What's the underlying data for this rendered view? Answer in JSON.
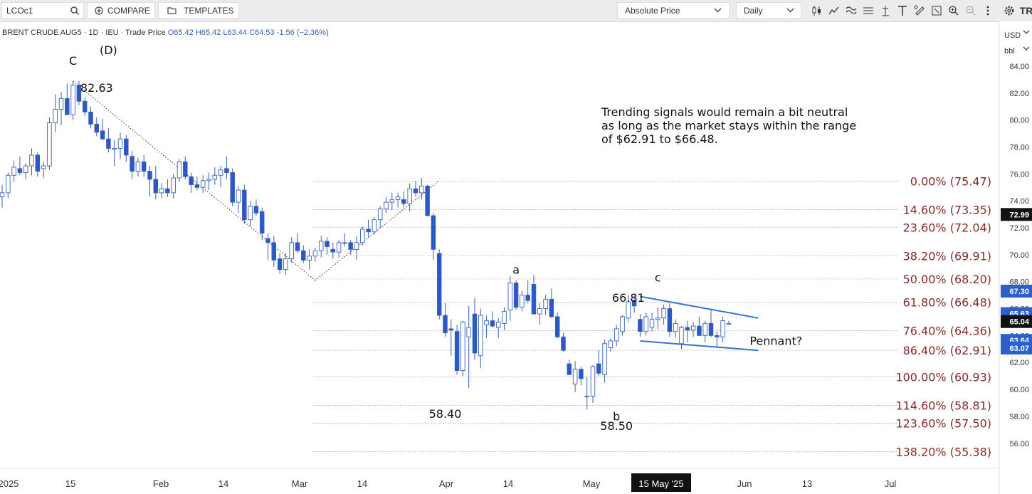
{
  "toolbar": {
    "symbol": "LCOc1",
    "compare_label": "COMPARE",
    "templates_label": "TEMPLATES",
    "price_mode": "Absolute Price",
    "interval": "Daily",
    "icons": [
      "candlestick-icon",
      "line-icon",
      "indicators-icon",
      "lines-icon",
      "crosshair-icon",
      "text-icon",
      "annotate-icon",
      "expand-icon",
      "zoom-in-icon",
      "zoom-out-icon",
      "more-icon",
      "settings-icon"
    ],
    "brand": "TR"
  },
  "legend": {
    "title": "BRENT CRUDE AUG5 · 1D · IEU · Trade Price",
    "open": "O65.42",
    "high": "H65.42",
    "low": "L63.44",
    "close": "C64.53",
    "change": "-1.56 (−2.36%)"
  },
  "axis": {
    "currency": "USD",
    "unit": "bbl"
  },
  "note": {
    "lines": [
      "Trending signals would remain a bit neutral",
      "as long as the market stays within the range",
      "of $62.91 to $66.48."
    ]
  },
  "colors": {
    "up": "#ffffff",
    "down": "#2a58c6",
    "wick": "#3b5fb8",
    "fib_text": "#8a2a2a",
    "trend": "#3a6fd8",
    "badge_blue": "#2a5fcc",
    "badge_dark": "#111111"
  },
  "chart_data": {
    "type": "candlestick",
    "y_axis": {
      "ylim": [
        55.3,
        86.4
      ],
      "ticks": [
        "56.00",
        "58.00",
        "60.00",
        "62.00",
        "64.00",
        "66.00",
        "68.00",
        "70.00",
        "72.00",
        "74.00",
        "76.00",
        "78.00",
        "80.00",
        "82.00",
        "84.00"
      ]
    },
    "x_axis": {
      "labels": [
        "2025",
        "15",
        "Feb",
        "14",
        "Mar",
        "14",
        "Apr",
        "14",
        "May",
        "15 May '25",
        "Jun",
        "13",
        "Jul"
      ]
    },
    "candles": [
      [
        74.3,
        75.2,
        73.5,
        74.6
      ],
      [
        74.6,
        76.1,
        74.2,
        75.9
      ],
      [
        75.9,
        77.0,
        75.4,
        76.5
      ],
      [
        76.4,
        77.3,
        75.9,
        76.1
      ],
      [
        76.1,
        76.8,
        75.6,
        76.6
      ],
      [
        76.6,
        77.9,
        75.9,
        77.4
      ],
      [
        77.4,
        77.6,
        75.8,
        76.2
      ],
      [
        76.4,
        76.9,
        75.7,
        76.6
      ],
      [
        76.6,
        80.2,
        76.3,
        79.8
      ],
      [
        79.8,
        81.9,
        79.1,
        80.8
      ],
      [
        80.8,
        82.1,
        79.6,
        81.6
      ],
      [
        81.6,
        82.7,
        80.6,
        80.4
      ],
      [
        80.4,
        82.9,
        80.0,
        82.6
      ],
      [
        82.6,
        82.9,
        81.1,
        81.4
      ],
      [
        81.4,
        81.7,
        80.3,
        80.6
      ],
      [
        80.6,
        81.0,
        79.4,
        79.7
      ],
      [
        79.7,
        80.2,
        78.8,
        79.1
      ],
      [
        79.2,
        80.1,
        78.5,
        78.6
      ],
      [
        78.6,
        79.4,
        77.6,
        77.9
      ],
      [
        77.9,
        78.5,
        76.6,
        77.9
      ],
      [
        77.9,
        79.1,
        77.1,
        78.6
      ],
      [
        78.6,
        78.9,
        76.9,
        77.4
      ],
      [
        77.3,
        77.7,
        75.6,
        76.2
      ],
      [
        76.2,
        77.2,
        75.8,
        76.9
      ],
      [
        76.9,
        77.4,
        75.8,
        76.2
      ],
      [
        76.2,
        76.6,
        74.3,
        75.6
      ],
      [
        75.6,
        76.6,
        74.1,
        74.6
      ],
      [
        74.6,
        75.3,
        74.2,
        74.9
      ],
      [
        74.9,
        75.6,
        74.3,
        74.6
      ],
      [
        74.6,
        76.0,
        74.2,
        75.7
      ],
      [
        75.7,
        77.1,
        75.4,
        76.9
      ],
      [
        76.9,
        77.3,
        75.6,
        75.8
      ],
      [
        75.8,
        76.1,
        74.6,
        75.2
      ],
      [
        75.2,
        75.8,
        74.8,
        75.0
      ],
      [
        75.0,
        75.9,
        74.6,
        75.5
      ],
      [
        75.5,
        76.1,
        74.8,
        75.6
      ],
      [
        75.6,
        76.5,
        75.2,
        75.9
      ],
      [
        75.9,
        76.6,
        75.0,
        76.3
      ],
      [
        76.4,
        77.3,
        75.6,
        76.1
      ],
      [
        76.1,
        76.4,
        73.6,
        73.9
      ],
      [
        73.9,
        75.1,
        73.1,
        74.8
      ],
      [
        74.8,
        75.2,
        72.3,
        72.6
      ],
      [
        72.6,
        74.0,
        72.1,
        73.6
      ],
      [
        73.6,
        74.1,
        72.9,
        73.1
      ],
      [
        73.2,
        73.5,
        71.1,
        71.6
      ],
      [
        71.2,
        71.6,
        69.6,
        70.9
      ],
      [
        70.9,
        71.4,
        69.1,
        69.6
      ],
      [
        69.7,
        70.1,
        68.6,
        68.9
      ],
      [
        68.9,
        70.1,
        68.5,
        69.7
      ],
      [
        69.7,
        71.3,
        69.4,
        70.9
      ],
      [
        70.9,
        71.6,
        70.1,
        70.3
      ],
      [
        70.3,
        70.7,
        69.4,
        69.6
      ],
      [
        69.6,
        70.4,
        68.9,
        69.9
      ],
      [
        69.9,
        70.5,
        69.5,
        70.3
      ],
      [
        70.3,
        71.4,
        69.8,
        71.0
      ],
      [
        71.0,
        71.3,
        70.0,
        70.6
      ],
      [
        70.4,
        70.9,
        69.7,
        70.2
      ],
      [
        70.2,
        71.1,
        69.8,
        70.9
      ],
      [
        70.9,
        71.6,
        70.6,
        70.9
      ],
      [
        70.9,
        71.1,
        70.0,
        70.4
      ],
      [
        70.4,
        71.4,
        69.6,
        70.9
      ],
      [
        70.9,
        72.1,
        70.7,
        71.9
      ],
      [
        71.9,
        72.6,
        71.3,
        71.7
      ],
      [
        71.7,
        72.8,
        71.5,
        72.6
      ],
      [
        72.6,
        73.6,
        72.0,
        73.4
      ],
      [
        73.4,
        74.3,
        73.1,
        73.9
      ],
      [
        73.9,
        74.6,
        73.3,
        74.1
      ],
      [
        74.1,
        74.6,
        73.5,
        74.3
      ],
      [
        74.1,
        74.7,
        73.5,
        73.8
      ],
      [
        73.8,
        75.3,
        73.2,
        74.9
      ],
      [
        74.9,
        75.5,
        74.3,
        74.6
      ],
      [
        74.6,
        75.7,
        74.1,
        75.1
      ],
      [
        75.1,
        75.2,
        72.9,
        72.9
      ],
      [
        72.9,
        73.1,
        69.6,
        70.4
      ],
      [
        70.1,
        70.4,
        65.2,
        65.5
      ],
      [
        65.5,
        66.4,
        63.9,
        64.2
      ],
      [
        64.5,
        65.2,
        62.5,
        64.4
      ],
      [
        64.3,
        64.8,
        61.1,
        61.4
      ],
      [
        61.4,
        65.1,
        61.0,
        65.0
      ],
      [
        63.9,
        66.2,
        60.1,
        64.6
      ],
      [
        65.6,
        66.8,
        62.2,
        62.7
      ],
      [
        62.5,
        66.0,
        61.6,
        65.5
      ],
      [
        64.8,
        65.5,
        63.8,
        65.1
      ],
      [
        65.1,
        65.8,
        64.6,
        64.7
      ],
      [
        64.6,
        65.3,
        63.8,
        65.0
      ],
      [
        64.9,
        66.1,
        64.4,
        65.8
      ],
      [
        65.9,
        68.4,
        65.1,
        67.9
      ],
      [
        67.9,
        68.1,
        65.9,
        66.1
      ],
      [
        66.1,
        67.3,
        65.8,
        67.0
      ],
      [
        67.0,
        68.1,
        66.4,
        66.6
      ],
      [
        67.8,
        68.5,
        65.6,
        65.6
      ],
      [
        65.6,
        66.4,
        64.8,
        66.0
      ],
      [
        66.0,
        67.0,
        65.5,
        66.7
      ],
      [
        66.7,
        67.5,
        65.3,
        65.4
      ],
      [
        65.4,
        65.7,
        63.8,
        63.9
      ],
      [
        63.9,
        64.2,
        62.8,
        62.9
      ],
      [
        61.9,
        62.2,
        61.1,
        61.1
      ],
      [
        60.4,
        62.1,
        59.8,
        61.5
      ],
      [
        61.5,
        61.7,
        60.3,
        60.8
      ],
      [
        59.5,
        60.9,
        58.5,
        59.5
      ],
      [
        59.5,
        61.8,
        59.0,
        61.7
      ],
      [
        61.9,
        62.9,
        61.0,
        61.2
      ],
      [
        61.1,
        63.7,
        60.5,
        63.4
      ],
      [
        63.1,
        63.8,
        62.8,
        63.6
      ],
      [
        63.6,
        64.8,
        63.2,
        64.5
      ],
      [
        64.3,
        65.5,
        64.0,
        65.4
      ],
      [
        65.3,
        67.0,
        65.0,
        66.5
      ],
      [
        66.6,
        67.0,
        65.7,
        66.2
      ],
      [
        65.2,
        65.6,
        63.9,
        64.3
      ],
      [
        64.3,
        65.7,
        64.0,
        65.4
      ],
      [
        64.6,
        65.7,
        64.3,
        65.2
      ],
      [
        65.2,
        66.1,
        64.5,
        65.3
      ],
      [
        65.3,
        66.3,
        64.8,
        66.0
      ],
      [
        66.0,
        66.4,
        63.9,
        64.3
      ],
      [
        64.3,
        65.2,
        63.8,
        64.9
      ],
      [
        63.4,
        64.7,
        63.0,
        64.6
      ],
      [
        64.6,
        65.1,
        63.5,
        64.4
      ],
      [
        64.4,
        65.0,
        63.9,
        64.7
      ],
      [
        64.7,
        65.4,
        64.2,
        64.0
      ],
      [
        64.0,
        65.1,
        63.5,
        64.9
      ],
      [
        64.9,
        66.0,
        63.9,
        64.0
      ],
      [
        64.0,
        64.3,
        63.1,
        63.9
      ],
      [
        63.9,
        65.4,
        63.5,
        65.1
      ],
      [
        64.9,
        65.1,
        64.8,
        64.9
      ]
    ],
    "fibonacci": [
      {
        "label": "0.00% (75.47)",
        "price": 75.47
      },
      {
        "label": "14.60% (73.35)",
        "price": 73.35
      },
      {
        "label": "23.60% (72.04)",
        "price": 72.04
      },
      {
        "label": "38.20% (69.91)",
        "price": 69.91
      },
      {
        "label": "50.00% (68.20)",
        "price": 68.2
      },
      {
        "label": "61.80% (66.48)",
        "price": 66.48
      },
      {
        "label": "76.40% (64.36)",
        "price": 64.36
      },
      {
        "label": "86.40% (62.91)",
        "price": 62.91
      },
      {
        "label": "100.00% (60.93)",
        "price": 60.93
      },
      {
        "label": "114.60% (58.81)",
        "price": 58.81
      },
      {
        "label": "123.60% (57.50)",
        "price": 57.5
      },
      {
        "label": "138.20% (55.38)",
        "price": 55.38
      }
    ],
    "price_badges": [
      {
        "text": "72.99",
        "price": 72.99,
        "style": "dark"
      },
      {
        "text": "67.30",
        "price": 67.3,
        "style": "blue"
      },
      {
        "text": "65.63",
        "price": 65.63,
        "style": "blue"
      },
      {
        "text": "65.04",
        "price": 65.04,
        "style": "dark"
      },
      {
        "text": "63.64",
        "price": 63.64,
        "style": "blue"
      },
      {
        "text": "63.07",
        "price": 63.07,
        "style": "blue"
      }
    ],
    "annotations": [
      {
        "text": "C",
        "bar": 12,
        "price": 84.1,
        "size": 16
      },
      {
        "text": "(D)",
        "bar": 18,
        "price": 84.9,
        "size": 16
      },
      {
        "text": "82.63",
        "bar": 16,
        "price": 82.1,
        "size": 16
      },
      {
        "text": "a",
        "bar": 87,
        "price": 68.6,
        "size": 16
      },
      {
        "text": "66.81",
        "bar": 106,
        "price": 66.5,
        "size": 16
      },
      {
        "text": "c",
        "bar": 111,
        "price": 68.0,
        "size": 16
      },
      {
        "text": "58.40",
        "bar": 75,
        "price": 57.9,
        "size": 16
      },
      {
        "text": "b",
        "bar": 104,
        "price": 57.7,
        "size": 16
      },
      {
        "text": "58.50",
        "bar": 104,
        "price": 57.0,
        "size": 16
      },
      {
        "text": "Pennant?",
        "bar": 131,
        "price": 63.3,
        "size": 16
      }
    ],
    "dotted_trendlines": [
      {
        "from": [
          12,
          82.9
        ],
        "to": [
          53,
          68.1
        ]
      },
      {
        "from": [
          53,
          68.1
        ],
        "to": [
          74,
          75.5
        ]
      }
    ],
    "pennant_lines": [
      {
        "from": [
          108,
          66.9
        ],
        "to": [
          128,
          65.3
        ]
      },
      {
        "from": [
          108,
          63.6
        ],
        "to": [
          128,
          62.9
        ]
      }
    ]
  }
}
